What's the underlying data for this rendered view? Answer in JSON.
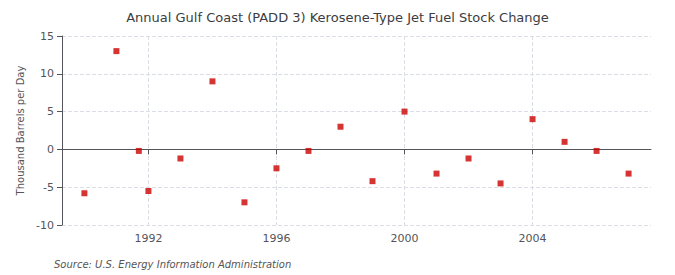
{
  "chart_data": {
    "type": "scatter",
    "title": "Annual Gulf Coast (PADD 3) Kerosene-Type Jet Fuel Stock Change",
    "ylabel": "Thousand Barrels per Day",
    "source": "Source: U.S. Energy Information Administration",
    "x": [
      1990,
      1991,
      1991.7,
      1992,
      1993,
      1994,
      1995,
      1996,
      1997,
      1998,
      1999,
      2000,
      2001,
      2002,
      2003,
      2004,
      2005,
      2006,
      2007
    ],
    "values": [
      -5.8,
      13.0,
      -0.2,
      -5.5,
      -1.2,
      9.0,
      -7.0,
      -2.5,
      -0.2,
      3.0,
      -4.2,
      5.0,
      -3.2,
      -1.2,
      -4.5,
      4.0,
      1.0,
      -0.2,
      -3.2
    ],
    "color": "#cc0000",
    "marker": "square",
    "xlim": [
      1989.3,
      2007.7
    ],
    "xticks": [
      1992,
      1996,
      2000,
      2004
    ],
    "ylim": [
      -10,
      15
    ],
    "yticks": [
      -10,
      -5,
      0,
      5,
      10,
      15
    ],
    "grid": true
  }
}
